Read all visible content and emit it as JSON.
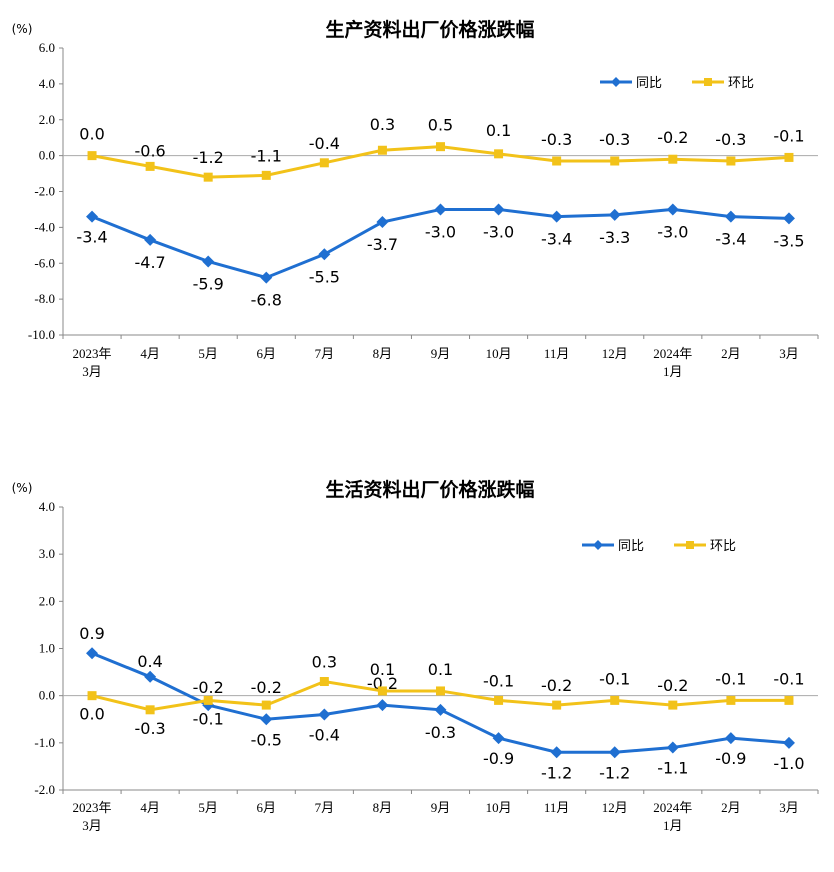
{
  "chart_data": [
    {
      "type": "line",
      "title": "生产资料出厂价格涨跌幅",
      "unit": "(%)",
      "categories": [
        "2023年\n3月",
        "4月",
        "5月",
        "6月",
        "7月",
        "8月",
        "9月",
        "10月",
        "11月",
        "12月",
        "2024年\n1月",
        "2月",
        "3月"
      ],
      "ylim": [
        -10.0,
        6.0
      ],
      "yticks": [
        "6.0",
        "4.0",
        "2.0",
        "0.0",
        "-2.0",
        "-4.0",
        "-6.0",
        "-8.0",
        "-10.0"
      ],
      "legend_position": "top-right",
      "series": [
        {
          "name": "同比",
          "color": "#1f6fd1",
          "marker": "diamond",
          "values": [
            -3.4,
            -4.7,
            -5.9,
            -6.8,
            -5.5,
            -3.7,
            -3.0,
            -3.0,
            -3.4,
            -3.3,
            -3.0,
            -3.4,
            -3.5
          ],
          "labels": [
            "-3.4",
            "-4.7",
            "-5.9",
            "-6.8",
            "-5.5",
            "-3.7",
            "-3.0",
            "-3.0",
            "-3.4",
            "-3.3",
            "-3.0",
            "-3.4",
            "-3.5"
          ]
        },
        {
          "name": "环比",
          "color": "#f2c219",
          "marker": "square",
          "values": [
            0.0,
            -0.6,
            -1.2,
            -1.1,
            -0.4,
            0.3,
            0.5,
            0.1,
            -0.3,
            -0.3,
            -0.2,
            -0.3,
            -0.1
          ],
          "labels": [
            "0.0",
            "-0.6",
            "-1.2",
            "-1.1",
            "-0.4",
            "0.3",
            "0.5",
            "0.1",
            "-0.3",
            "-0.3",
            "-0.2",
            "-0.3",
            "-0.1"
          ]
        }
      ]
    },
    {
      "type": "line",
      "title": "生活资料出厂价格涨跌幅",
      "unit": "(%)",
      "categories": [
        "2023年\n3月",
        "4月",
        "5月",
        "6月",
        "7月",
        "8月",
        "9月",
        "10月",
        "11月",
        "12月",
        "2024年\n1月",
        "2月",
        "3月"
      ],
      "ylim": [
        -2.0,
        4.0
      ],
      "yticks": [
        "4.0",
        "3.0",
        "2.0",
        "1.0",
        "0.0",
        "-1.0",
        "-2.0"
      ],
      "legend_position": "top-right",
      "series": [
        {
          "name": "同比",
          "color": "#1f6fd1",
          "marker": "diamond",
          "values": [
            0.9,
            0.4,
            -0.2,
            -0.5,
            -0.4,
            -0.2,
            -0.3,
            -0.9,
            -1.2,
            -1.2,
            -1.1,
            -0.9,
            -1.0
          ],
          "labels": [
            "0.9",
            "0.4",
            "-0.2",
            "-0.5",
            "-0.4",
            "-0.2",
            "-0.3",
            "-0.9",
            "-1.2",
            "-1.2",
            "-1.1",
            "-0.9",
            "-1.0"
          ]
        },
        {
          "name": "环比",
          "color": "#f2c219",
          "marker": "square",
          "values": [
            0.0,
            -0.3,
            -0.1,
            -0.2,
            0.3,
            0.1,
            0.1,
            -0.1,
            -0.2,
            -0.1,
            -0.2,
            -0.1,
            -0.1
          ],
          "labels": [
            "0.0",
            "-0.3",
            "-0.1",
            "-0.2",
            "0.3",
            "0.1",
            "0.1",
            "-0.1",
            "-0.2",
            "-0.1",
            "-0.2",
            "-0.1",
            "-0.1"
          ]
        }
      ]
    }
  ]
}
